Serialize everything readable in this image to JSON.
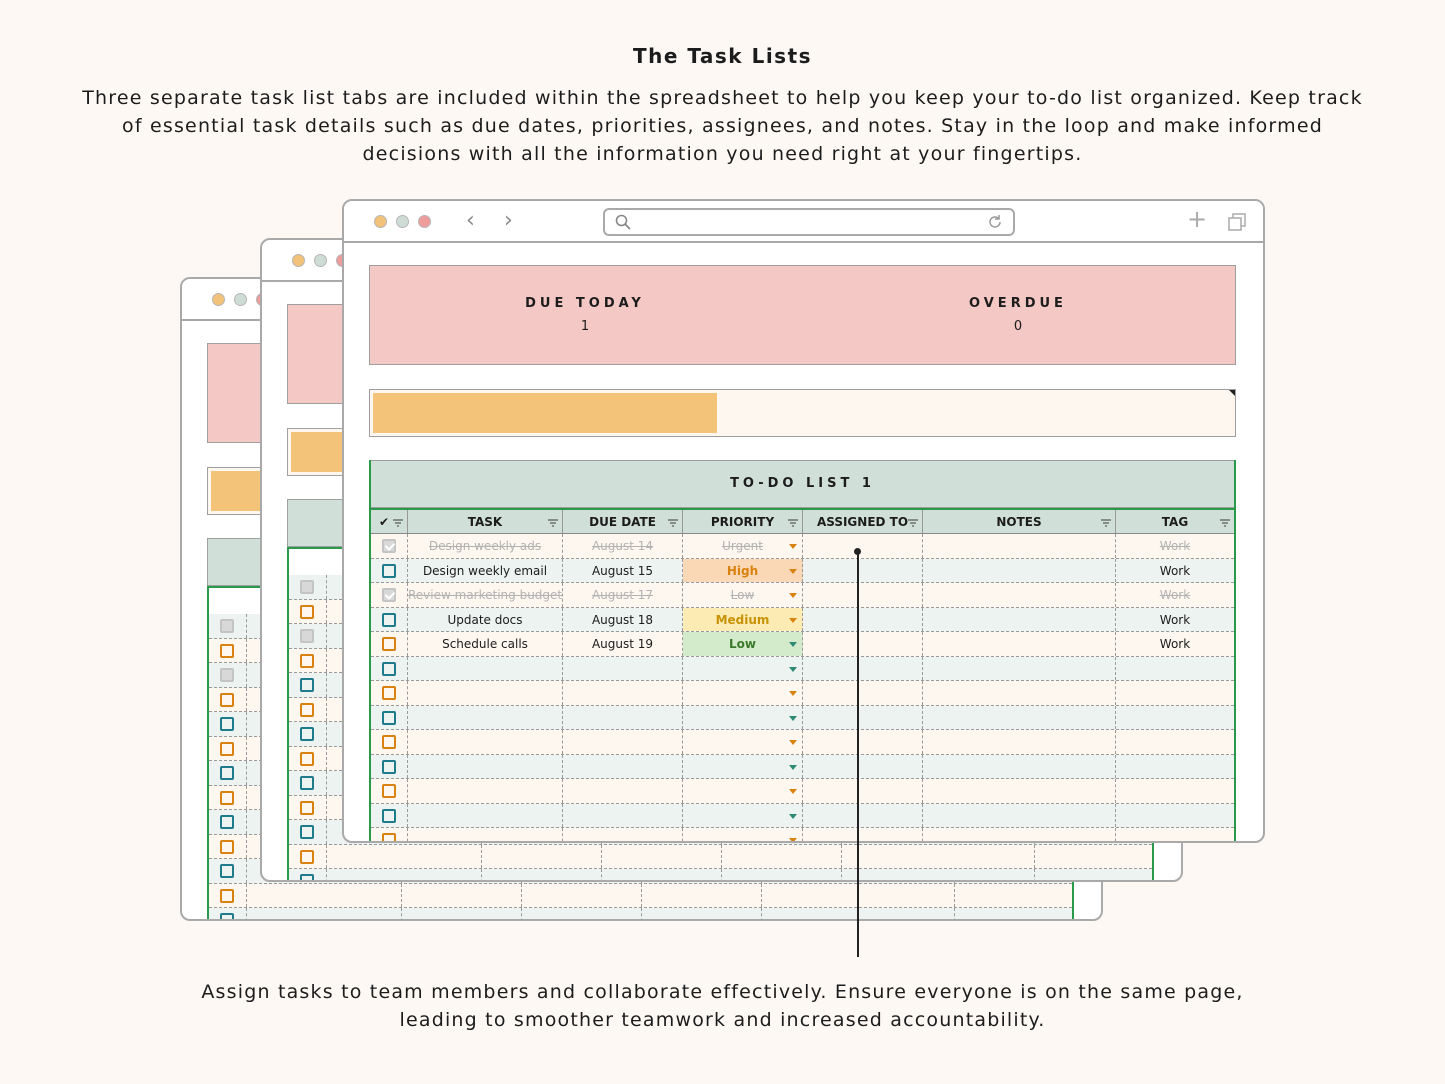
{
  "page": {
    "heading": "The Task Lists",
    "intro": "Three separate task list tabs are included within the spreadsheet to help you keep your to-do list organized. Keep track of essential task details such as due dates, priorities, assignees, and notes. Stay in the loop and make informed decisions with all the information you need right at your fingertips.",
    "footer": "Assign tasks to team members and collaborate effectively. Ensure everyone is on the same page, leading to smoother teamwork and increased accountability."
  },
  "colors": {
    "background": "#fdf8f4",
    "pink": "#f4c8c4",
    "yellow": "#f4c37a",
    "sage": "#d1dfd9",
    "border_green": "#2a9a4a",
    "high": "#d9820f",
    "medium": "#c89206",
    "low": "#3b7a2c"
  },
  "browser": {
    "icons": [
      "back-icon",
      "forward-icon",
      "search-icon",
      "reload-icon",
      "plus-icon",
      "duplicate-tabs-icon"
    ],
    "back_glyph": "‹",
    "forward_glyph": "›",
    "plus_glyph": "+"
  },
  "dashboard": {
    "due_today_label": "DUE TODAY",
    "due_today_value": "1",
    "overdue_label": "OVERDUE",
    "overdue_value": "0",
    "progress_fraction": 0.4
  },
  "todo": {
    "title": "TO-DO LIST 1",
    "columns": [
      "✔",
      "TASK",
      "DUE DATE",
      "PRIORITY",
      "ASSIGNED TO",
      "NOTES",
      "TAG"
    ],
    "rows": [
      {
        "done": true,
        "task": "Design weekly ads",
        "due": "August 14",
        "priority": "Urgent",
        "assigned": "",
        "notes": "",
        "tag": "Work"
      },
      {
        "done": false,
        "task": "Design weekly email",
        "due": "August 15",
        "priority": "High",
        "assigned": "",
        "notes": "",
        "tag": "Work"
      },
      {
        "done": true,
        "task": "Review marketing budget",
        "due": "August 17",
        "priority": "Low",
        "assigned": "",
        "notes": "",
        "tag": "Work"
      },
      {
        "done": false,
        "task": "Update docs",
        "due": "August 18",
        "priority": "Medium",
        "assigned": "",
        "notes": "",
        "tag": "Work"
      },
      {
        "done": false,
        "task": "Schedule calls",
        "due": "August 19",
        "priority": "Low",
        "assigned": "",
        "notes": "",
        "tag": "Work"
      }
    ],
    "empty_rows": 8
  }
}
